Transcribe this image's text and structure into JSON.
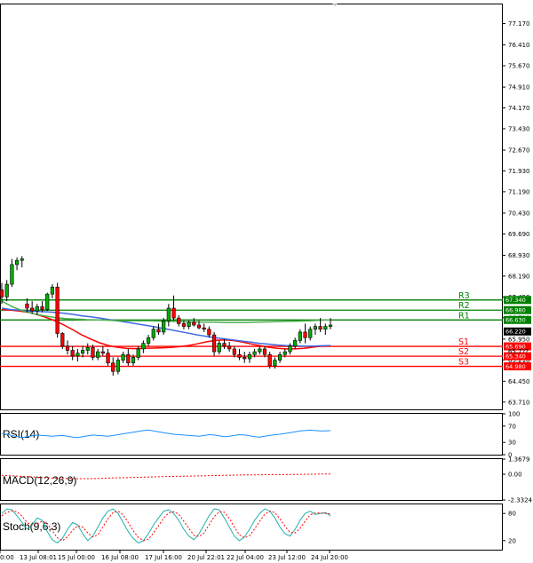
{
  "chart_data": {
    "type": "candlestick",
    "price_axis": {
      "range": [
        63.45,
        77.85
      ],
      "ticks": [
        "77.170",
        "76.410",
        "75.670",
        "74.910",
        "74.170",
        "73.430",
        "72.670",
        "71.930",
        "71.190",
        "70.430",
        "69.690",
        "68.930",
        "68.190",
        "67.450",
        "66.710",
        "65.950",
        "65.210",
        "64.450",
        "63.710"
      ]
    },
    "time_axis": {
      "labels": [
        "0:00",
        "13 Jul 08:01",
        "15 Jul 00:00",
        "16 Jul 08:00",
        "17 Jul 16:00",
        "20 Jul 22:01",
        "22 Jul 04:00",
        "23 Jul 12:00",
        "24 Jul 20:00"
      ]
    },
    "candles": [
      {
        "o": 67.7,
        "h": 67.95,
        "l": 67.2,
        "c": 67.45
      },
      {
        "o": 67.45,
        "h": 68.05,
        "l": 67.3,
        "c": 67.9
      },
      {
        "o": 67.9,
        "h": 68.8,
        "l": 67.8,
        "c": 68.6
      },
      {
        "o": 68.6,
        "h": 68.85,
        "l": 68.4,
        "c": 68.75
      },
      {
        "o": 68.75,
        "h": 68.9,
        "l": 68.5,
        "c": 68.8
      },
      {
        "o": 67.2,
        "h": 67.4,
        "l": 66.9,
        "c": 67.05
      },
      {
        "o": 67.05,
        "h": 67.3,
        "l": 66.85,
        "c": 66.95
      },
      {
        "o": 66.95,
        "h": 67.2,
        "l": 66.8,
        "c": 67.1
      },
      {
        "o": 67.1,
        "h": 67.3,
        "l": 66.9,
        "c": 67.0
      },
      {
        "o": 67.0,
        "h": 67.6,
        "l": 66.95,
        "c": 67.55
      },
      {
        "o": 67.55,
        "h": 67.9,
        "l": 67.4,
        "c": 67.8
      },
      {
        "o": 67.8,
        "h": 67.95,
        "l": 66.0,
        "c": 66.15
      },
      {
        "o": 66.15,
        "h": 66.2,
        "l": 65.6,
        "c": 65.7
      },
      {
        "o": 65.7,
        "h": 65.9,
        "l": 65.4,
        "c": 65.55
      },
      {
        "o": 65.55,
        "h": 65.7,
        "l": 65.2,
        "c": 65.35
      },
      {
        "o": 65.35,
        "h": 65.6,
        "l": 65.15,
        "c": 65.45
      },
      {
        "o": 65.45,
        "h": 65.7,
        "l": 65.3,
        "c": 65.55
      },
      {
        "o": 65.55,
        "h": 65.8,
        "l": 65.4,
        "c": 65.65
      },
      {
        "o": 65.65,
        "h": 65.75,
        "l": 65.2,
        "c": 65.3
      },
      {
        "o": 65.3,
        "h": 65.6,
        "l": 65.2,
        "c": 65.5
      },
      {
        "o": 65.5,
        "h": 65.7,
        "l": 65.35,
        "c": 65.45
      },
      {
        "o": 65.45,
        "h": 65.6,
        "l": 65.0,
        "c": 65.1
      },
      {
        "o": 65.1,
        "h": 65.3,
        "l": 64.65,
        "c": 64.8
      },
      {
        "o": 64.8,
        "h": 65.3,
        "l": 64.7,
        "c": 65.2
      },
      {
        "o": 65.2,
        "h": 65.5,
        "l": 65.1,
        "c": 65.4
      },
      {
        "o": 65.4,
        "h": 65.6,
        "l": 65.0,
        "c": 65.1
      },
      {
        "o": 65.1,
        "h": 65.4,
        "l": 65.0,
        "c": 65.3
      },
      {
        "o": 65.3,
        "h": 65.7,
        "l": 65.2,
        "c": 65.6
      },
      {
        "o": 65.6,
        "h": 65.9,
        "l": 65.45,
        "c": 65.8
      },
      {
        "o": 65.8,
        "h": 66.1,
        "l": 65.7,
        "c": 66.0
      },
      {
        "o": 66.0,
        "h": 66.4,
        "l": 65.9,
        "c": 66.3
      },
      {
        "o": 66.3,
        "h": 66.5,
        "l": 66.1,
        "c": 66.2
      },
      {
        "o": 66.2,
        "h": 66.7,
        "l": 66.1,
        "c": 66.6
      },
      {
        "o": 66.6,
        "h": 67.2,
        "l": 66.4,
        "c": 67.05
      },
      {
        "o": 67.05,
        "h": 67.5,
        "l": 66.6,
        "c": 66.7
      },
      {
        "o": 66.7,
        "h": 66.8,
        "l": 66.4,
        "c": 66.5
      },
      {
        "o": 66.5,
        "h": 66.6,
        "l": 66.3,
        "c": 66.4
      },
      {
        "o": 66.4,
        "h": 66.6,
        "l": 66.3,
        "c": 66.55
      },
      {
        "o": 66.55,
        "h": 66.7,
        "l": 66.4,
        "c": 66.45
      },
      {
        "o": 66.45,
        "h": 66.6,
        "l": 66.3,
        "c": 66.35
      },
      {
        "o": 66.35,
        "h": 66.5,
        "l": 66.2,
        "c": 66.3
      },
      {
        "o": 66.3,
        "h": 66.4,
        "l": 66.0,
        "c": 66.1
      },
      {
        "o": 66.1,
        "h": 66.2,
        "l": 65.35,
        "c": 65.5
      },
      {
        "o": 65.5,
        "h": 65.9,
        "l": 65.4,
        "c": 65.8
      },
      {
        "o": 65.8,
        "h": 65.95,
        "l": 65.6,
        "c": 65.7
      },
      {
        "o": 65.7,
        "h": 65.85,
        "l": 65.5,
        "c": 65.6
      },
      {
        "o": 65.6,
        "h": 65.7,
        "l": 65.3,
        "c": 65.4
      },
      {
        "o": 65.4,
        "h": 65.6,
        "l": 65.2,
        "c": 65.3
      },
      {
        "o": 65.3,
        "h": 65.5,
        "l": 65.1,
        "c": 65.25
      },
      {
        "o": 65.25,
        "h": 65.5,
        "l": 65.1,
        "c": 65.4
      },
      {
        "o": 65.4,
        "h": 65.6,
        "l": 65.3,
        "c": 65.5
      },
      {
        "o": 65.5,
        "h": 65.7,
        "l": 65.4,
        "c": 65.6
      },
      {
        "o": 65.6,
        "h": 65.7,
        "l": 65.3,
        "c": 65.4
      },
      {
        "o": 65.4,
        "h": 65.5,
        "l": 64.9,
        "c": 65.0
      },
      {
        "o": 65.0,
        "h": 65.3,
        "l": 64.9,
        "c": 65.2
      },
      {
        "o": 65.2,
        "h": 65.5,
        "l": 65.1,
        "c": 65.4
      },
      {
        "o": 65.4,
        "h": 65.6,
        "l": 65.3,
        "c": 65.5
      },
      {
        "o": 65.5,
        "h": 65.8,
        "l": 65.4,
        "c": 65.7
      },
      {
        "o": 65.7,
        "h": 66.0,
        "l": 65.6,
        "c": 65.9
      },
      {
        "o": 65.9,
        "h": 66.3,
        "l": 65.8,
        "c": 66.2
      },
      {
        "o": 66.2,
        "h": 66.5,
        "l": 65.8,
        "c": 66.0
      },
      {
        "o": 66.0,
        "h": 66.4,
        "l": 65.9,
        "c": 66.3
      },
      {
        "o": 66.3,
        "h": 66.5,
        "l": 66.1,
        "c": 66.4
      },
      {
        "o": 66.4,
        "h": 66.7,
        "l": 66.2,
        "c": 66.3
      },
      {
        "o": 66.3,
        "h": 66.5,
        "l": 66.1,
        "c": 66.4
      },
      {
        "o": 66.4,
        "h": 66.7,
        "l": 66.3,
        "c": 66.45
      }
    ],
    "indicators": [
      {
        "name": "SMA fast",
        "color": "#ff0000",
        "values": [
          67.0,
          66.98,
          66.95,
          66.9,
          66.82,
          66.72,
          66.6,
          66.45,
          66.28,
          66.1,
          65.95,
          65.82,
          65.72,
          65.66,
          65.62,
          65.61,
          65.62,
          65.63,
          65.64,
          65.65,
          65.68,
          65.72,
          65.78,
          65.85,
          65.9,
          65.92,
          65.9,
          65.85,
          65.78,
          65.72,
          65.66,
          65.62,
          65.6,
          65.6,
          65.62,
          65.66,
          65.7,
          65.72
        ]
      },
      {
        "name": "SMA slow",
        "color": "#4169e1",
        "values": [
          67.05,
          67.0,
          66.98,
          66.95,
          66.93,
          66.92,
          66.9,
          66.87,
          66.83,
          66.78,
          66.74,
          66.7,
          66.65,
          66.6,
          66.55,
          66.5,
          66.45,
          66.4,
          66.34,
          66.28,
          66.22,
          66.16,
          66.1,
          66.05,
          66.0,
          65.96,
          65.92,
          65.88,
          65.84,
          65.8,
          65.77,
          65.74,
          65.72,
          65.71,
          65.7,
          65.7,
          65.71,
          65.72
        ]
      },
      {
        "name": "SMA long",
        "color": "#4cae4c",
        "values": [
          67.3,
          67.1,
          66.95,
          66.85,
          66.78,
          66.72,
          66.68,
          66.66,
          66.64,
          66.63,
          66.62,
          66.6,
          66.6,
          66.6,
          66.6,
          66.59,
          66.58,
          66.57,
          66.56,
          66.55,
          66.55,
          66.54,
          66.54,
          66.54,
          66.55,
          66.56,
          66.57,
          66.58,
          66.59,
          66.6,
          66.62,
          66.63
        ]
      }
    ],
    "levels": [
      {
        "name": "R3",
        "value": 67.34,
        "tag": "67.340",
        "color": "#008000"
      },
      {
        "name": "R2",
        "value": 66.98,
        "tag": "66.980",
        "color": "#008000"
      },
      {
        "name": "R1",
        "value": 66.63,
        "tag": "66.630",
        "color": "#008000"
      },
      {
        "name": "S1",
        "value": 65.69,
        "tag": "65.690",
        "color": "#ff0000"
      },
      {
        "name": "S2",
        "value": 65.34,
        "tag": "65.340",
        "color": "#ff0000"
      },
      {
        "name": "S3",
        "value": 64.98,
        "tag": "64.980",
        "color": "#ff0000"
      }
    ],
    "current_price": {
      "value": 66.22,
      "tag": "66.220"
    },
    "hidden_tag": "65.7??",
    "rsi": {
      "title": "RSI(14)",
      "range": [
        0,
        100
      ],
      "ticks": [
        "100",
        "70",
        "30",
        "0"
      ],
      "values": [
        52,
        50,
        47,
        44,
        42,
        44,
        46,
        48,
        47,
        46,
        45,
        46,
        47,
        45,
        43,
        42,
        44,
        46,
        48,
        47,
        46,
        45,
        47,
        49,
        51,
        53,
        55,
        57,
        59,
        60,
        58,
        56,
        54,
        52,
        50,
        49,
        48,
        47,
        46,
        45,
        47,
        49,
        48,
        46,
        44,
        45,
        47,
        49,
        48,
        46,
        44,
        43,
        45,
        47,
        49,
        50,
        52,
        54,
        56,
        58,
        59,
        60,
        59,
        58,
        58,
        59
      ]
    },
    "macd": {
      "title": "MACD(12,26,9)",
      "range": [
        -2.33,
        1.37
      ],
      "ticks": [
        "1.3679",
        "0.00",
        "-2.3324"
      ],
      "signal": [
        -0.1,
        -0.15,
        -0.2,
        -0.25,
        -0.3,
        -0.35,
        -0.38,
        -0.4,
        -0.4,
        -0.38,
        -0.35,
        -0.32,
        -0.3,
        -0.28,
        -0.25,
        -0.22,
        -0.2,
        -0.18,
        -0.16,
        -0.14,
        -0.12,
        -0.1,
        -0.08,
        -0.06,
        -0.05,
        -0.04,
        -0.03,
        -0.02,
        -0.01,
        0.0,
        0.02,
        0.03
      ]
    },
    "stoch": {
      "title": "Stoch(9,6,3)",
      "range": [
        0,
        100
      ],
      "ticks": [
        "80",
        "20"
      ],
      "k": [
        80,
        90,
        88,
        75,
        60,
        45,
        55,
        70,
        65,
        40,
        22,
        15,
        25,
        45,
        60,
        55,
        35,
        20,
        30,
        50,
        70,
        85,
        90,
        80,
        60,
        40,
        25,
        15,
        20,
        35,
        55,
        70,
        85,
        88,
        80,
        65,
        45,
        30,
        22,
        35,
        55,
        75,
        90,
        88,
        70,
        50,
        30,
        20,
        28,
        45,
        65,
        80,
        90,
        85,
        70,
        50,
        35,
        30,
        45,
        65,
        80,
        85,
        78,
        80,
        82,
        75
      ],
      "d": [
        75,
        82,
        86,
        84,
        74,
        60,
        53,
        57,
        63,
        58,
        42,
        26,
        20,
        28,
        43,
        53,
        50,
        37,
        28,
        33,
        50,
        68,
        82,
        85,
        77,
        60,
        42,
        27,
        20,
        23,
        37,
        53,
        70,
        81,
        84,
        78,
        63,
        47,
        32,
        29,
        37,
        55,
        73,
        84,
        83,
        69,
        50,
        33,
        26,
        31,
        46,
        63,
        78,
        85,
        82,
        68,
        52,
        38,
        37,
        47,
        63,
        77,
        81,
        81,
        80,
        79
      ]
    }
  }
}
